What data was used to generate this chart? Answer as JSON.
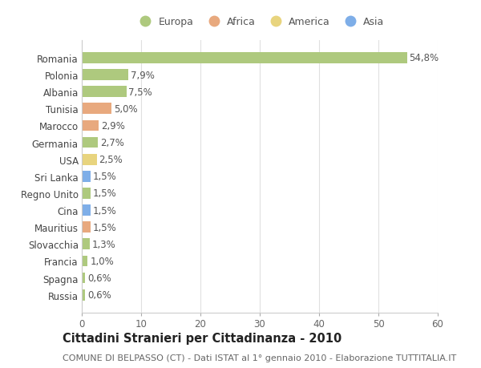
{
  "countries": [
    "Romania",
    "Polonia",
    "Albania",
    "Tunisia",
    "Marocco",
    "Germania",
    "USA",
    "Sri Lanka",
    "Regno Unito",
    "Cina",
    "Mauritius",
    "Slovacchia",
    "Francia",
    "Spagna",
    "Russia"
  ],
  "values": [
    54.8,
    7.9,
    7.5,
    5.0,
    2.9,
    2.7,
    2.5,
    1.5,
    1.5,
    1.5,
    1.5,
    1.3,
    1.0,
    0.6,
    0.6
  ],
  "labels": [
    "54,8%",
    "7,9%",
    "7,5%",
    "5,0%",
    "2,9%",
    "2,7%",
    "2,5%",
    "1,5%",
    "1,5%",
    "1,5%",
    "1,5%",
    "1,3%",
    "1,0%",
    "0,6%",
    "0,6%"
  ],
  "categories": [
    "Europa",
    "Africa",
    "America",
    "Asia"
  ],
  "continent": [
    "Europa",
    "Europa",
    "Europa",
    "Africa",
    "Africa",
    "Europa",
    "America",
    "Asia",
    "Europa",
    "Asia",
    "Africa",
    "Europa",
    "Europa",
    "Europa",
    "Europa"
  ],
  "colors": {
    "Europa": "#aec97e",
    "Africa": "#e8a97e",
    "America": "#e8d47e",
    "Asia": "#7eaee8"
  },
  "background_color": "#ffffff",
  "grid_color": "#e0e0e0",
  "title": "Cittadini Stranieri per Cittadinanza - 2010",
  "subtitle": "COMUNE DI BELPASSO (CT) - Dati ISTAT al 1° gennaio 2010 - Elaborazione TUTTITALIA.IT",
  "xlim": [
    0,
    60
  ],
  "xticks": [
    0,
    10,
    20,
    30,
    40,
    50,
    60
  ],
  "bar_height": 0.65,
  "label_fontsize": 8.5,
  "tick_fontsize": 8.5,
  "title_fontsize": 10.5,
  "subtitle_fontsize": 8
}
